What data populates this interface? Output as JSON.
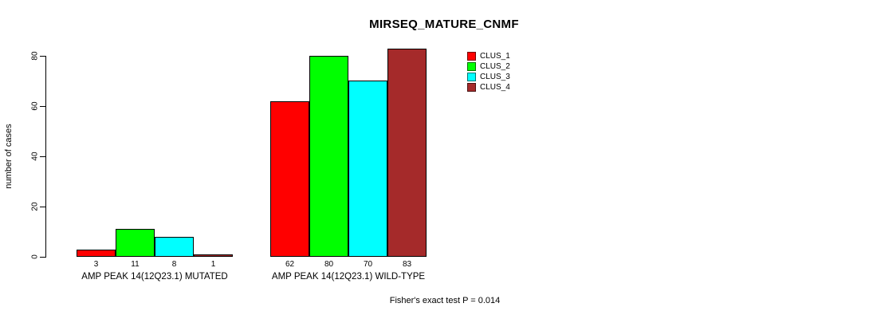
{
  "chart_data": {
    "type": "bar",
    "title": "MIRSEQ_MATURE_CNMF",
    "ylabel": "number of cases",
    "xlabel": "",
    "categories": [
      "AMP PEAK 14(12Q23.1) MUTATED",
      "AMP PEAK 14(12Q23.1) WILD-TYPE"
    ],
    "series": [
      {
        "name": "CLUS_1",
        "color": "#FF0000",
        "values": [
          3,
          62
        ]
      },
      {
        "name": "CLUS_2",
        "color": "#00FF00",
        "values": [
          11,
          80
        ]
      },
      {
        "name": "CLUS_3",
        "color": "#00FFFF",
        "values": [
          8,
          70
        ]
      },
      {
        "name": "CLUS_4",
        "color": "#A52A2A",
        "values": [
          1,
          83
        ]
      }
    ],
    "yticks": [
      0,
      20,
      40,
      60,
      80
    ],
    "ylim": [
      0,
      83
    ],
    "grid": false,
    "bar_value_labels_shown": true,
    "legend_position": "top-right",
    "legend_entries": [
      "CLUS_1",
      "CLUS_2",
      "CLUS_3",
      "CLUS_4"
    ],
    "annotation": "Fisher's exact test P = 0.014"
  }
}
